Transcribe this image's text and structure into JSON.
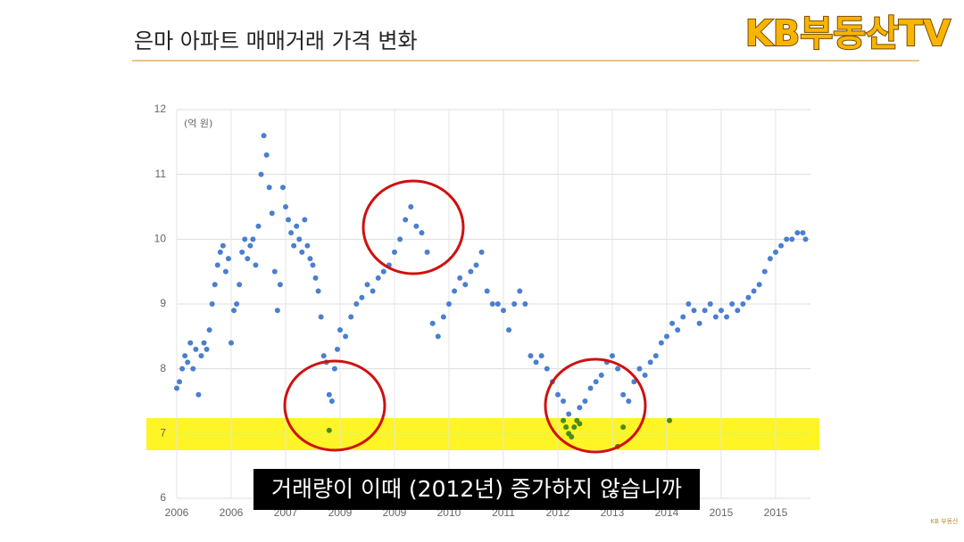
{
  "chart_data": {
    "type": "scatter",
    "title": "은마 아파트 매매거래 가격 변화",
    "logo": "KB부동산TV",
    "unit_label": "(억 원)",
    "caption": "거래량이 이때 (2012년) 증가하지 않습니까",
    "watermark": "KB 부동산",
    "xlim": [
      0,
      11.64
    ],
    "xticks": [
      {
        "value": 0,
        "label": "2006"
      },
      {
        "value": 1,
        "label": "2006"
      },
      {
        "value": 2,
        "label": "2007"
      },
      {
        "value": 3,
        "label": "2009"
      },
      {
        "value": 4,
        "label": "2009"
      },
      {
        "value": 5,
        "label": "2010"
      },
      {
        "value": 6,
        "label": "2011"
      },
      {
        "value": 7,
        "label": "2012"
      },
      {
        "value": 8,
        "label": "2013"
      },
      {
        "value": 9,
        "label": "2014"
      },
      {
        "value": 10,
        "label": "2015"
      },
      {
        "value": 11,
        "label": "2015"
      }
    ],
    "ylim": [
      6,
      12
    ],
    "yticks": [
      6,
      7,
      8,
      9,
      10,
      11,
      12
    ],
    "grid": true,
    "series": [
      {
        "color": "#4a7fcf",
        "x": [
          0.0,
          0.05,
          0.1,
          0.15,
          0.2,
          0.25,
          0.3,
          0.35,
          0.4,
          0.45,
          0.5,
          0.55,
          0.6,
          0.65,
          0.7,
          0.75,
          0.8,
          0.85,
          0.9,
          0.95,
          1.0,
          1.05,
          1.1,
          1.15,
          1.2,
          1.25,
          1.3,
          1.35,
          1.4,
          1.45,
          1.5,
          1.55,
          1.6,
          1.65,
          1.7,
          1.75,
          1.8,
          1.85,
          1.9,
          1.95,
          2.0,
          2.05,
          2.1,
          2.15,
          2.2,
          2.25,
          2.3,
          2.35,
          2.4,
          2.45,
          2.5,
          2.55,
          2.6,
          2.65,
          2.7,
          2.75,
          2.8,
          2.85,
          2.9,
          2.95,
          3.0,
          3.1,
          3.2,
          3.3,
          3.4,
          3.5,
          3.6,
          3.7,
          3.8,
          3.9,
          4.0,
          4.1,
          4.2,
          4.3,
          4.4,
          4.5,
          4.6,
          4.7,
          4.8,
          4.9,
          5.0,
          5.1,
          5.2,
          5.3,
          5.4,
          5.5,
          5.6,
          5.7,
          5.8,
          5.9,
          6.0,
          6.1,
          6.2,
          6.3,
          6.4,
          6.5,
          6.6,
          6.7,
          6.8,
          6.9,
          7.0,
          7.1,
          7.2,
          7.4,
          7.5,
          7.6,
          7.7,
          7.8,
          7.9,
          8.0,
          8.1,
          8.2,
          8.3,
          8.4,
          8.5,
          8.6,
          8.7,
          8.8,
          8.9,
          9.0,
          9.1,
          9.2,
          9.3,
          9.4,
          9.5,
          9.6,
          9.7,
          9.8,
          9.9,
          10.0,
          10.1,
          10.2,
          10.3,
          10.4,
          10.5,
          10.6,
          10.7,
          10.8,
          10.9,
          11.0,
          11.1,
          11.2,
          11.3,
          11.4,
          11.5,
          11.55
        ],
        "values": [
          7.7,
          7.8,
          8.0,
          8.2,
          8.1,
          8.4,
          8.0,
          8.3,
          7.6,
          8.2,
          8.4,
          8.3,
          8.6,
          9.0,
          9.3,
          9.6,
          9.8,
          9.9,
          9.5,
          9.7,
          8.4,
          8.9,
          9.0,
          9.3,
          9.8,
          10.0,
          9.7,
          9.9,
          10.0,
          9.6,
          10.2,
          11.0,
          11.6,
          11.3,
          10.8,
          10.4,
          9.5,
          8.9,
          9.3,
          10.8,
          10.5,
          10.3,
          10.1,
          9.9,
          10.2,
          10.0,
          9.8,
          10.3,
          9.9,
          9.7,
          9.6,
          9.4,
          9.2,
          8.8,
          8.2,
          8.1,
          7.6,
          7.5,
          8.0,
          8.3,
          8.6,
          8.5,
          8.8,
          9.0,
          9.1,
          9.3,
          9.2,
          9.4,
          9.5,
          9.6,
          9.8,
          10.0,
          10.3,
          10.5,
          10.2,
          10.1,
          9.8,
          8.7,
          8.5,
          8.8,
          9.0,
          9.2,
          9.4,
          9.3,
          9.5,
          9.6,
          9.8,
          9.2,
          9.0,
          9.0,
          8.9,
          8.6,
          9.0,
          9.2,
          9.0,
          8.2,
          8.1,
          8.2,
          8.0,
          7.8,
          7.6,
          7.5,
          7.3,
          7.4,
          7.5,
          7.7,
          7.8,
          7.9,
          8.1,
          8.2,
          8.0,
          7.6,
          7.5,
          7.8,
          8.0,
          7.9,
          8.1,
          8.2,
          8.4,
          8.5,
          8.7,
          8.6,
          8.8,
          9.0,
          8.9,
          8.7,
          8.9,
          9.0,
          8.8,
          8.9,
          8.8,
          9.0,
          8.9,
          9.0,
          9.1,
          9.2,
          9.3,
          9.5,
          9.7,
          9.8,
          9.9,
          10.0,
          10.0,
          10.1,
          10.1,
          10.0
        ]
      },
      {
        "color": "#4a8a1a",
        "x": [
          2.8,
          7.1,
          7.15,
          7.2,
          7.25,
          7.3,
          7.35,
          7.4,
          8.1,
          8.2,
          9.05
        ],
        "values": [
          7.05,
          7.2,
          7.1,
          7.0,
          6.95,
          7.1,
          7.2,
          7.15,
          6.8,
          7.1,
          7.2
        ]
      }
    ]
  }
}
